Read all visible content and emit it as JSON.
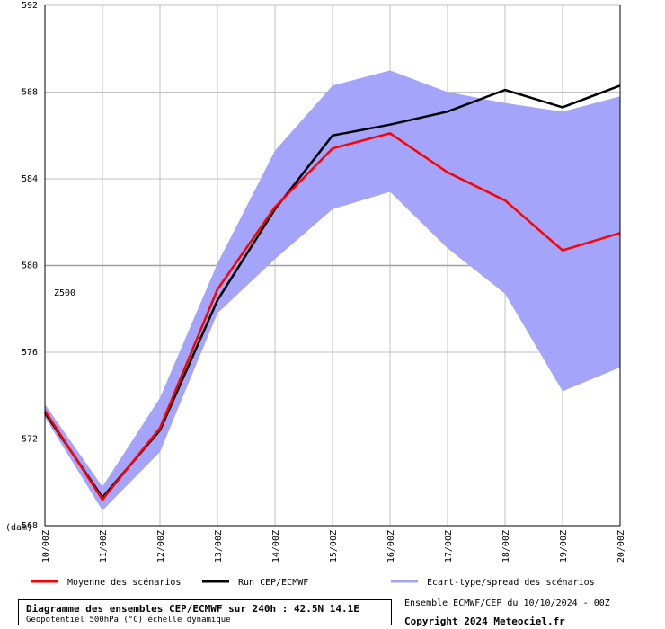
{
  "chart_data": {
    "type": "line",
    "x": [
      "10/00Z",
      "11/00Z",
      "12/00Z",
      "13/00Z",
      "14/00Z",
      "15/00Z",
      "16/00Z",
      "17/00Z",
      "18/00Z",
      "19/00Z",
      "20/00Z"
    ],
    "ylim": [
      568,
      592
    ],
    "yticks": [
      568,
      572,
      576,
      580,
      584,
      588,
      592
    ],
    "ylabel": "(dam)",
    "annotation": "Z500",
    "reference_line": 580,
    "grid": true,
    "legend_position": "bottom",
    "series": [
      {
        "name": "Moyenne des scénarios",
        "color": "#ff0000",
        "values": [
          573.3,
          569.2,
          572.5,
          578.9,
          582.7,
          585.4,
          586.1,
          584.3,
          583.0,
          580.7,
          581.5
        ]
      },
      {
        "name": "Run CEP/ECMWF",
        "color": "#000000",
        "values": [
          573.2,
          569.3,
          572.4,
          578.4,
          582.6,
          586.0,
          586.5,
          587.1,
          588.1,
          587.3,
          588.3
        ]
      }
    ],
    "band": {
      "name": "Ecart-type/spread des scénarios",
      "color": "#a4a4fa",
      "upper": [
        573.6,
        569.8,
        573.9,
        580.1,
        585.3,
        588.3,
        589.0,
        588.0,
        587.5,
        587.1,
        587.8
      ],
      "lower": [
        573.0,
        568.7,
        571.4,
        577.8,
        580.3,
        582.6,
        583.4,
        580.8,
        578.7,
        574.2,
        575.3
      ]
    }
  },
  "footer": {
    "title": "Diagramme des ensembles CEP/ECMWF sur 240h : 42.5N 14.1E",
    "subtitle": "Geopotentiel 500hPa (°C) échelle dynamique",
    "run_info": "Ensemble ECMWF/CEP du 10/10/2024 - 00Z",
    "copyright": "Copyright 2024 Meteociel.fr"
  }
}
